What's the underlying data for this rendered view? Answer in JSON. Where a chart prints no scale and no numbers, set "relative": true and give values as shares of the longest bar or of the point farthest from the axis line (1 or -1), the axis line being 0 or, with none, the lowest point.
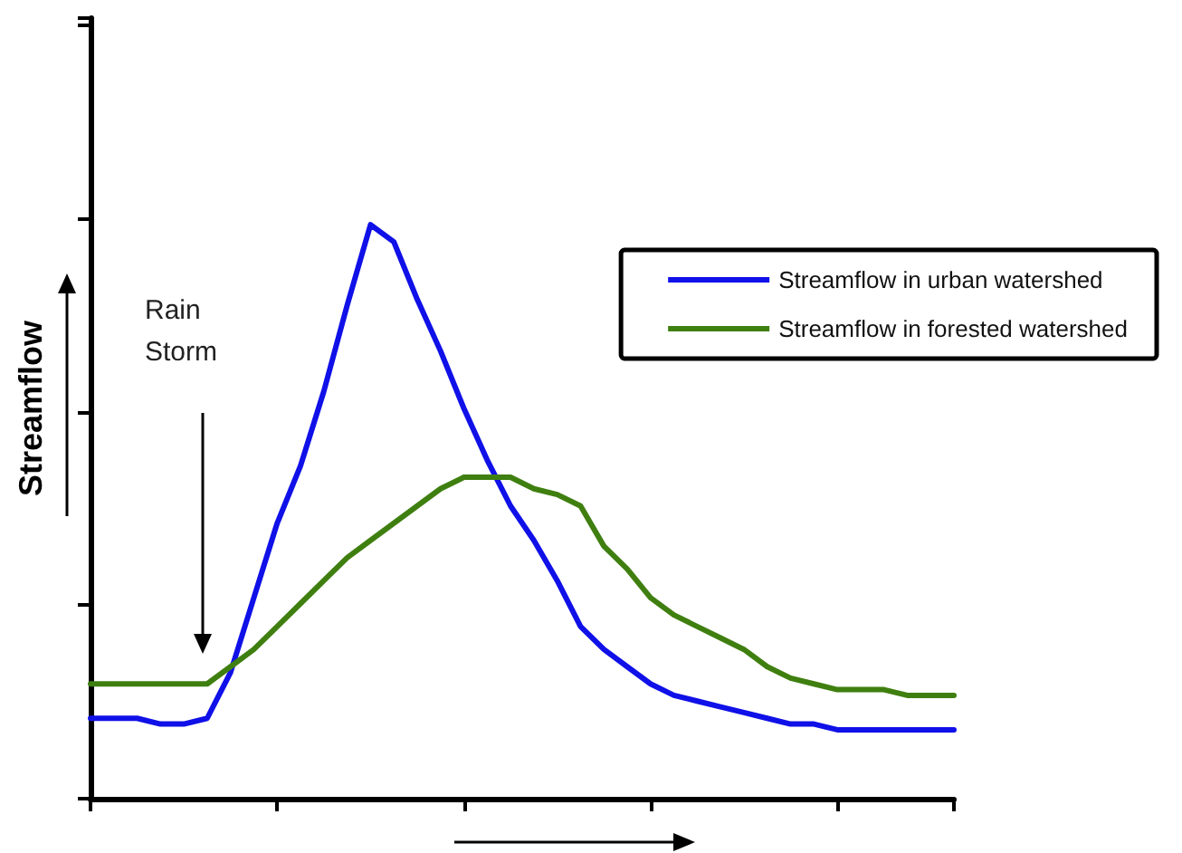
{
  "chart_data": {
    "type": "line",
    "relative": true,
    "ylabel": "Streamflow",
    "annotations": [
      "Rain\nStorm"
    ],
    "legend": "top right",
    "grid": false,
    "marker": "none",
    "line_style": "solid",
    "categories": [
      null,
      null,
      null,
      null,
      null,
      null,
      null,
      null,
      null,
      null,
      null,
      null,
      null,
      null,
      null,
      null,
      null,
      null,
      null,
      null,
      null,
      null,
      null,
      null,
      null,
      null,
      null,
      null,
      null,
      null,
      null,
      null,
      null,
      null,
      null,
      null,
      null,
      null
    ],
    "series": [
      {
        "name": "Streamflow in urban watershed",
        "color": "#1010e8",
        "values": [
          0.14,
          0.14,
          0.14,
          0.13,
          0.13,
          0.14,
          0.22,
          0.35,
          0.48,
          0.58,
          0.71,
          0.86,
          1.0,
          0.97,
          0.87,
          0.78,
          0.68,
          0.59,
          0.51,
          0.45,
          0.38,
          0.3,
          0.26,
          0.23,
          0.2,
          0.18,
          0.17,
          0.16,
          0.15,
          0.14,
          0.13,
          0.13,
          0.12,
          0.12,
          0.12,
          0.12,
          0.12,
          0.12
        ]
      },
      {
        "name": "Streamflow in forested watershed",
        "color": "#3f7f10",
        "values": [
          0.2,
          0.2,
          0.2,
          0.2,
          0.2,
          0.2,
          0.23,
          0.26,
          0.3,
          0.34,
          0.38,
          0.42,
          0.45,
          0.48,
          0.51,
          0.54,
          0.56,
          0.56,
          0.56,
          0.54,
          0.53,
          0.51,
          0.44,
          0.4,
          0.35,
          0.32,
          0.3,
          0.28,
          0.26,
          0.23,
          0.21,
          0.2,
          0.19,
          0.19,
          0.19,
          0.18,
          0.18,
          0.18
        ]
      }
    ]
  }
}
